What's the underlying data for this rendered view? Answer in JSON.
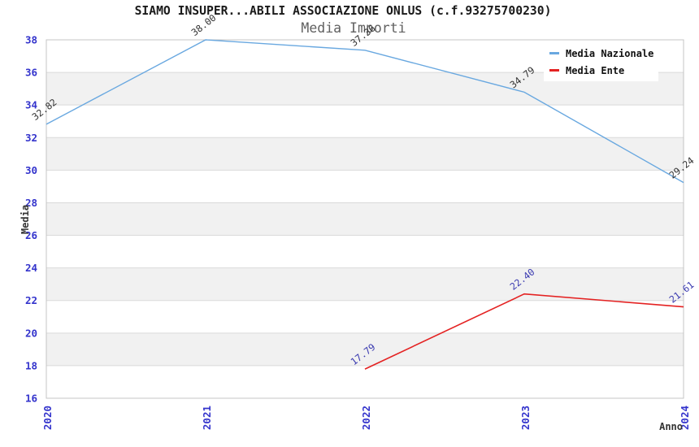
{
  "page": {
    "background": "#ffffff"
  },
  "chart_data": {
    "type": "line",
    "title": "SIAMO INSUPER...ABILI ASSOCIAZIONE ONLUS (c.f.93275700230)",
    "subtitle": "Media Importi",
    "xlabel": "Anno",
    "ylabel": "Media",
    "categories": [
      "2020",
      "2021",
      "2022",
      "2023",
      "2024"
    ],
    "ylim": [
      16,
      38
    ],
    "ytick_step": 2,
    "grid": "horizontal-gridlines-with-alternating-bands",
    "legend_position": "top-right",
    "axis_tick_color": "#3333cc",
    "band_color": "#f1f1f1",
    "series": [
      {
        "name": "Media Nazionale",
        "color": "#69a8e0",
        "label_color": "#333333",
        "x": [
          "2020",
          "2021",
          "2022",
          "2023",
          "2024"
        ],
        "values": [
          32.82,
          38.0,
          37.36,
          34.79,
          29.24
        ],
        "labels": [
          "32.82",
          "38.00",
          "37.36",
          "34.79",
          "29.24"
        ]
      },
      {
        "name": "Media Ente",
        "color": "#e42222",
        "label_color": "#3a3ab0",
        "x": [
          "2022",
          "2023",
          "2024"
        ],
        "values": [
          17.79,
          22.4,
          21.61
        ],
        "labels": [
          "17.79",
          "22.40",
          "21.61"
        ]
      }
    ]
  }
}
